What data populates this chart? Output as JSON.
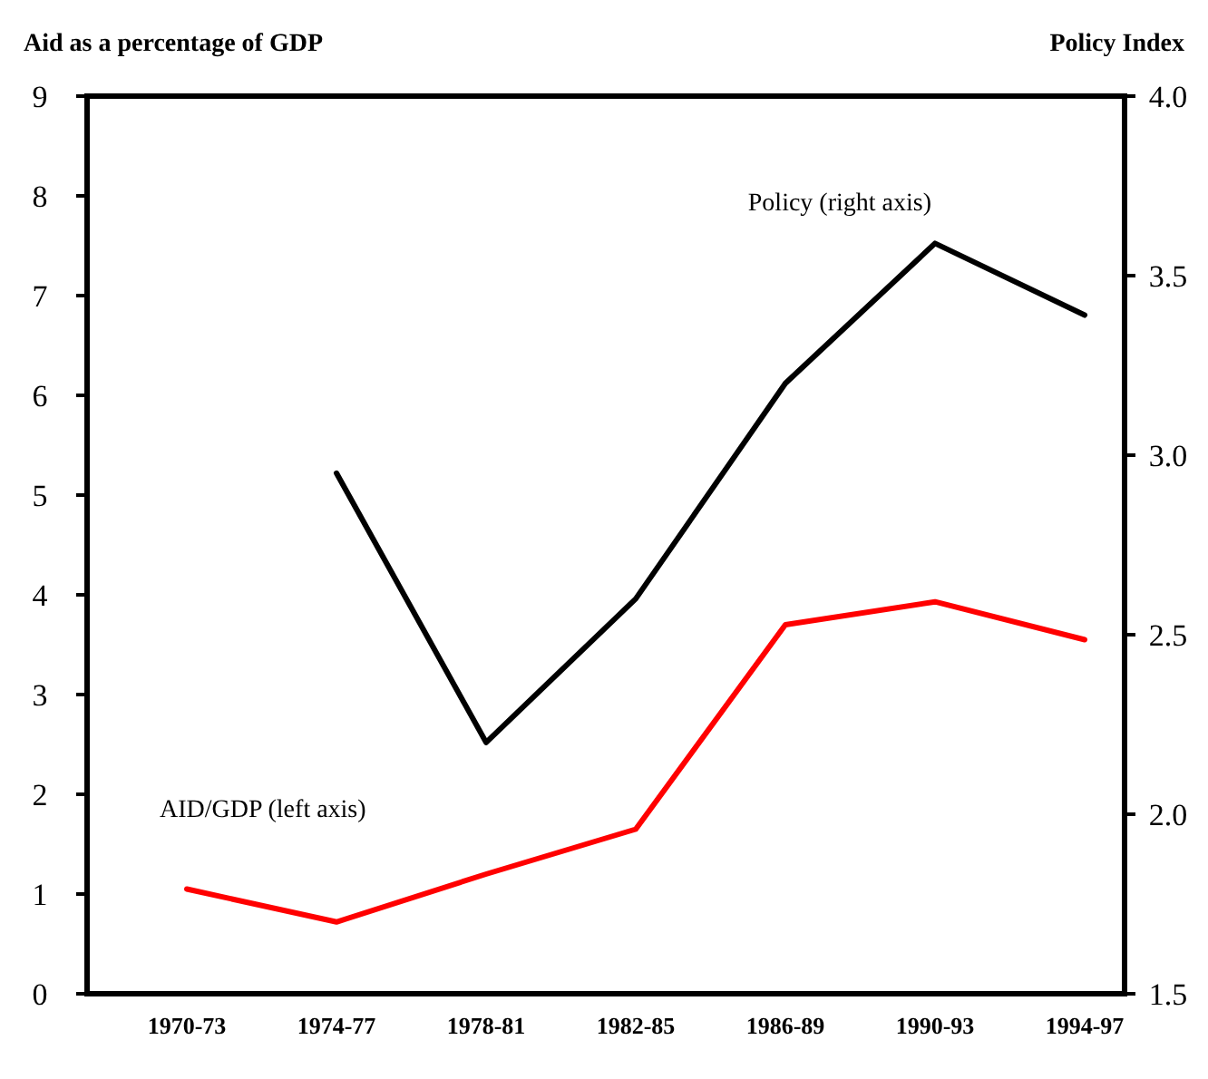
{
  "chart_data": {
    "type": "line",
    "ylabel": "Aid as a percentage of GDP",
    "y2label": "Policy Index",
    "categories": [
      "1970-73",
      "1974-77",
      "1978-81",
      "1982-85",
      "1986-89",
      "1990-93",
      "1994-97"
    ],
    "series": [
      {
        "name": "AID/GDP (left axis)",
        "color": "#ff0000",
        "values": [
          1.05,
          0.72,
          1.2,
          1.65,
          3.7,
          3.93,
          3.55
        ]
      },
      {
        "name": "Policy (right axis)",
        "color": "#000000",
        "axis": "y2",
        "values": [
          null,
          2.95,
          2.2,
          2.6,
          3.2,
          3.59,
          3.39
        ]
      }
    ],
    "ylim": [
      0,
      9
    ],
    "yticks": [
      0,
      1,
      2,
      3,
      4,
      5,
      6,
      7,
      8,
      9
    ],
    "y2lim": [
      1.5,
      4
    ],
    "y2ticks": [
      1.5,
      {
        "value": 2,
        "label": "2.0"
      },
      2.5,
      {
        "value": 3,
        "label": "3.0"
      },
      3.5,
      {
        "value": 4,
        "label": "4.0"
      }
    ],
    "grid": false,
    "marker": "none",
    "line_style": "solid"
  }
}
